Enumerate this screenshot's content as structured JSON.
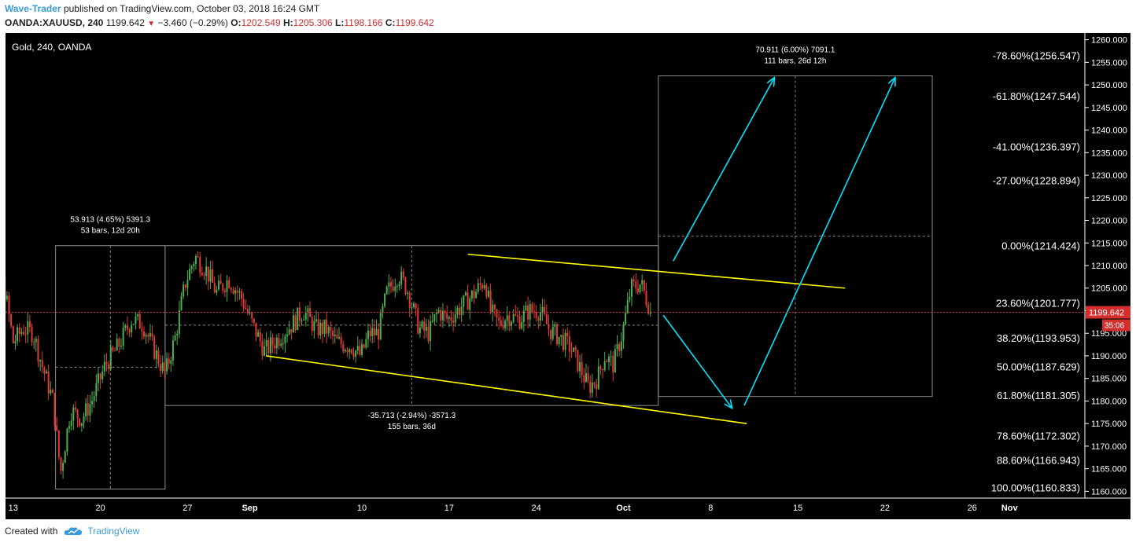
{
  "header": {
    "author": "Wave-Trader",
    "published": "published on TradingView.com, October 03, 2018 16:24 GMT",
    "symbol": "OANDA:XAUUSD, 240",
    "last": "1199.642",
    "change": "−3.460 (−0.29%)",
    "o_label": "O:",
    "o_value": "1202.549",
    "h_label": "H:",
    "h_value": "1205.306",
    "l_label": "L:",
    "l_value": "1198.166",
    "c_label": "C:",
    "c_value": "1199.642"
  },
  "footer": {
    "created_with": "Created with",
    "brand": "TradingView"
  },
  "colors": {
    "up": "#4caf50",
    "down": "#e53935",
    "channel": "#ffff00",
    "projection": "#00e5ff",
    "price_line": "#d32f2f"
  },
  "chart_data": {
    "type": "candlestick",
    "title": "Gold, 240, OANDA",
    "ylim": [
      1158.5,
      1261.5
    ],
    "y_ticks": [
      1160,
      1165,
      1170,
      1175,
      1180,
      1185,
      1190,
      1195,
      1200,
      1205,
      1210,
      1215,
      1220,
      1225,
      1230,
      1235,
      1240,
      1245,
      1250,
      1255,
      1260
    ],
    "x_labels": [
      {
        "label": "13",
        "pos": 13
      },
      {
        "label": "20",
        "pos": 20
      },
      {
        "label": "27",
        "pos": 27
      },
      {
        "label": "Sep",
        "pos": 32
      },
      {
        "label": "10",
        "pos": 41
      },
      {
        "label": "17",
        "pos": 48
      },
      {
        "label": "24",
        "pos": 55
      },
      {
        "label": "Oct",
        "pos": 62
      },
      {
        "label": "8",
        "pos": 69
      },
      {
        "label": "15",
        "pos": 76
      },
      {
        "label": "22",
        "pos": 83
      },
      {
        "label": "26",
        "pos": 90
      },
      {
        "label": "Nov",
        "pos": 93
      }
    ],
    "current_price": {
      "value": 1199.642,
      "label": "1199.642",
      "countdown": "35:06"
    },
    "price_path": [
      [
        10.0,
        1215
      ],
      [
        10.7,
        1211
      ],
      [
        11.4,
        1213
      ],
      [
        12.3,
        1205
      ],
      [
        13.0,
        1193
      ],
      [
        13.8,
        1196
      ],
      [
        14.6,
        1195
      ],
      [
        15.3,
        1188
      ],
      [
        16.2,
        1180
      ],
      [
        16.8,
        1164
      ],
      [
        17.6,
        1178
      ],
      [
        18.5,
        1176
      ],
      [
        19.3,
        1180
      ],
      [
        20.4,
        1188
      ],
      [
        21.4,
        1192
      ],
      [
        22.5,
        1198
      ],
      [
        23.4,
        1197
      ],
      [
        24.2,
        1192
      ],
      [
        25.2,
        1186
      ],
      [
        26.0,
        1194
      ],
      [
        26.8,
        1206
      ],
      [
        27.6,
        1212
      ],
      [
        28.5,
        1209
      ],
      [
        29.3,
        1204
      ],
      [
        30.3,
        1207
      ],
      [
        31.3,
        1203
      ],
      [
        32.2,
        1197
      ],
      [
        33.2,
        1191
      ],
      [
        34.3,
        1194
      ],
      [
        35.4,
        1197
      ],
      [
        36.3,
        1200
      ],
      [
        37.3,
        1196
      ],
      [
        38.1,
        1196
      ],
      [
        39.0,
        1193
      ],
      [
        40.2,
        1192
      ],
      [
        40.9,
        1190
      ],
      [
        41.6,
        1195
      ],
      [
        42.3,
        1195
      ],
      [
        43.0,
        1204
      ],
      [
        43.9,
        1208
      ],
      [
        44.6,
        1205
      ],
      [
        45.6,
        1196
      ],
      [
        46.4,
        1195
      ],
      [
        47.1,
        1200
      ],
      [
        47.9,
        1198
      ],
      [
        49.0,
        1201
      ],
      [
        50.1,
        1204
      ],
      [
        50.9,
        1207
      ],
      [
        51.3,
        1200
      ],
      [
        52.0,
        1197
      ],
      [
        52.7,
        1199
      ],
      [
        53.6,
        1198
      ],
      [
        54.4,
        1200
      ],
      [
        55.3,
        1200
      ],
      [
        56.0,
        1196
      ],
      [
        56.9,
        1194
      ],
      [
        57.7,
        1192
      ],
      [
        58.4,
        1188
      ],
      [
        59.2,
        1183
      ],
      [
        59.9,
        1185
      ],
      [
        60.5,
        1190
      ],
      [
        61.2,
        1188
      ],
      [
        61.9,
        1195
      ],
      [
        62.6,
        1205
      ],
      [
        63.4,
        1206
      ],
      [
        64.2,
        1200
      ]
    ],
    "annotations": [
      {
        "type": "line",
        "name": "channel-upper",
        "x1": 49.5,
        "y1": 1212.5,
        "x2": 79.8,
        "y2": 1205,
        "color": "#ffff00"
      },
      {
        "type": "line",
        "name": "channel-lower",
        "x1": 33.3,
        "y1": 1190,
        "x2": 71.9,
        "y2": 1175,
        "color": "#ffff00"
      },
      {
        "type": "arrow",
        "name": "proj-arrow-down",
        "x1": 65.2,
        "y1": 1199,
        "x2": 70.7,
        "y2": 1178.5,
        "color": "#00e5ff"
      },
      {
        "type": "arrow",
        "name": "proj-arrow-up-left",
        "x1": 66.0,
        "y1": 1211,
        "x2": 74.1,
        "y2": 1251.5,
        "color": "#00e5ff"
      },
      {
        "type": "arrow",
        "name": "proj-arrow-up-right",
        "x1": 71.7,
        "y1": 1179,
        "x2": 83.8,
        "y2": 1251.5,
        "color": "#00e5ff"
      },
      {
        "type": "range",
        "name": "range-aug-rally",
        "x1": 16.4,
        "y1": 1160.5,
        "x2": 25.2,
        "y2": 1214.4,
        "mid_y": 1187.5,
        "label1": "53.913 (4.65%) 5391.3",
        "label2": "53 bars, 12d 20h"
      },
      {
        "type": "range",
        "name": "range-sep-channel",
        "x1": 25.2,
        "y1": 1179,
        "x2": 64.8,
        "y2": 1214.4,
        "mid_y": 1196.8,
        "label1": "-35.713 (-2.94%) -3571.3",
        "label2": "155 bars, 36d"
      },
      {
        "type": "range",
        "name": "range-projection",
        "x1": 64.8,
        "y1": 1181,
        "x2": 86.8,
        "y2": 1252,
        "mid_y": 1216.5,
        "label1": "70.911 (6.00%) 7091.1",
        "label2": "111 bars, 26d 12h"
      }
    ],
    "fib_levels": [
      {
        "label": "-78.60%(1256.547)",
        "value": 1256.547
      },
      {
        "label": "-61.80%(1247.544)",
        "value": 1247.544
      },
      {
        "label": "-41.00%(1236.397)",
        "value": 1236.397
      },
      {
        "label": "-27.00%(1228.894)",
        "value": 1228.894
      },
      {
        "label": "0.00%(1214.424)",
        "value": 1214.424
      },
      {
        "label": "23.60%(1201.777)",
        "value": 1201.777
      },
      {
        "label": "38.20%(1193.953)",
        "value": 1193.953
      },
      {
        "label": "50.00%(1187.629)",
        "value": 1187.629
      },
      {
        "label": "61.80%(1181.305)",
        "value": 1181.305
      },
      {
        "label": "78.60%(1172.302)",
        "value": 1172.302
      },
      {
        "label": "88.60%(1166.943)",
        "value": 1166.943
      },
      {
        "label": "100.00%(1160.833)",
        "value": 1160.833
      }
    ]
  }
}
